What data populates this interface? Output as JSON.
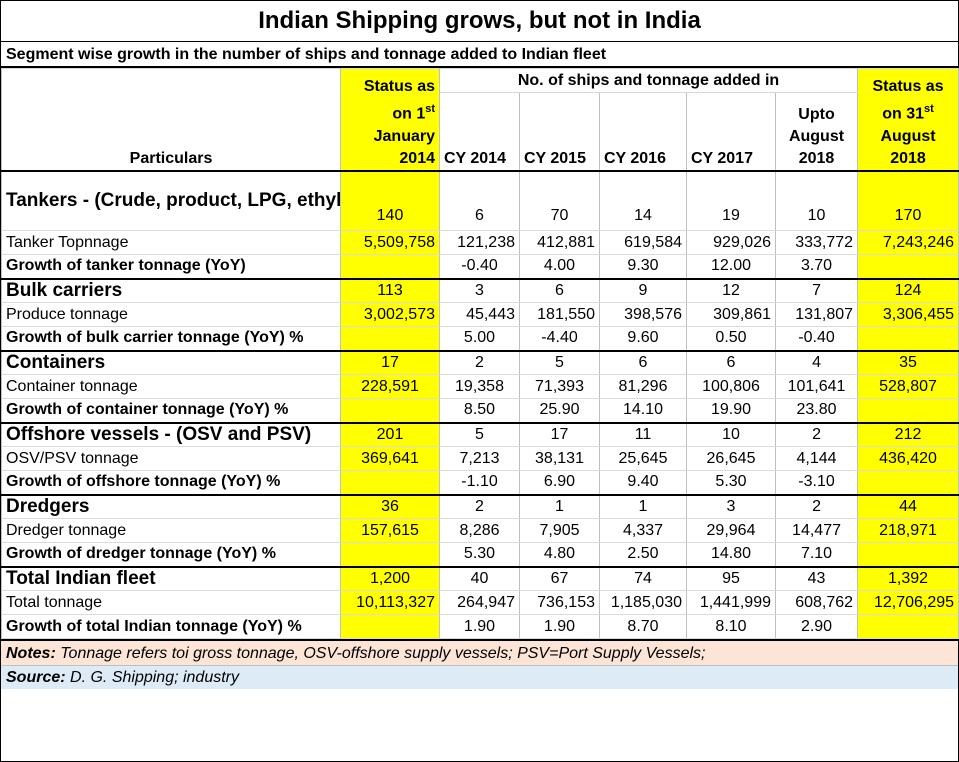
{
  "title": "Indian Shipping grows, but not in India",
  "subtitle": "Segment wise growth in the number of ships and tonnage added to Indian fleet",
  "header": {
    "particulars": "Particulars",
    "status_start_line1": "Status as",
    "status_start_line2_pre": "on 1",
    "status_start_line2_sup": "st",
    "status_start_line3": "January",
    "status_start_line4": "2014",
    "added_span": "No. of ships and tonnage added in",
    "years": [
      "CY 2014",
      "CY 2015",
      "CY 2016",
      "CY 2017"
    ],
    "upto_line1": "Upto",
    "upto_line2": "August",
    "upto_line3": "2018",
    "status_end_line1": "Status as",
    "status_end_line2_pre": "on 31",
    "status_end_line2_sup": "st",
    "status_end_line3": "August",
    "status_end_line4": "2018"
  },
  "segments": [
    {
      "title": "Tankers -  (Crude, product, LPG, ethylene, chemical and acid)",
      "ships": [
        "140",
        "6",
        "70",
        "14",
        "19",
        "10",
        "170"
      ],
      "tonnage_label": "Tanker Topnnage",
      "tonnage": [
        "5,509,758",
        "121,238",
        "412,881",
        "619,584",
        "929,026",
        "333,772",
        "7,243,246"
      ],
      "growth_label": "Growth of tanker tonnage (YoY)",
      "growth": [
        "",
        "-0.40",
        "4.00",
        "9.30",
        "12.00",
        "3.70",
        ""
      ]
    },
    {
      "title": "Bulk carriers",
      "ships": [
        "113",
        "3",
        "6",
        "9",
        "12",
        "7",
        "124"
      ],
      "tonnage_label": "Produce tonnage",
      "tonnage": [
        "3,002,573",
        "45,443",
        "181,550",
        "398,576",
        "309,861",
        "131,807",
        "3,306,455"
      ],
      "growth_label": "Growth of bulk carrier tonnage (YoY) %",
      "growth": [
        "",
        "5.00",
        "-4.40",
        "9.60",
        "0.50",
        "-0.40",
        ""
      ]
    },
    {
      "title": "Containers",
      "ships": [
        "17",
        "2",
        "5",
        "6",
        "6",
        "4",
        "35"
      ],
      "tonnage_label": "Container tonnage",
      "tonnage": [
        "228,591",
        "19,358",
        "71,393",
        "81,296",
        "100,806",
        "101,641",
        "528,807"
      ],
      "growth_label": "Growth of container tonnage (YoY) %",
      "growth": [
        "",
        "8.50",
        "25.90",
        "14.10",
        "19.90",
        "23.80",
        ""
      ]
    },
    {
      "title": "Offshore vessels - (OSV and PSV)",
      "ships": [
        "201",
        "5",
        "17",
        "11",
        "10",
        "2",
        "212"
      ],
      "tonnage_label": "OSV/PSV tonnage",
      "tonnage": [
        "369,641",
        "7,213",
        "38,131",
        "25,645",
        "26,645",
        "4,144",
        "436,420"
      ],
      "growth_label": "Growth of offshore tonnage (YoY) %",
      "growth": [
        "",
        "-1.10",
        "6.90",
        "9.40",
        "5.30",
        "-3.10",
        ""
      ]
    },
    {
      "title": "Dredgers",
      "ships": [
        "36",
        "2",
        "1",
        "1",
        "3",
        "2",
        "44"
      ],
      "tonnage_label": "Dredger tonnage",
      "tonnage": [
        "157,615",
        "8,286",
        "7,905",
        "4,337",
        "29,964",
        "14,477",
        "218,971"
      ],
      "growth_label": "Growth of dredger tonnage (YoY) %",
      "growth": [
        "",
        "5.30",
        "4.80",
        "2.50",
        "14.80",
        "7.10",
        ""
      ]
    },
    {
      "title": "Total Indian fleet",
      "ships": [
        "1,200",
        "40",
        "67",
        "74",
        "95",
        "43",
        "1,392"
      ],
      "tonnage_label": "Total tonnage",
      "tonnage": [
        "10,113,327",
        "264,947",
        "736,153",
        "1,185,030",
        "1,441,999",
        "608,762",
        "12,706,295"
      ],
      "growth_label": "Growth of total Indian tonnage (YoY) %",
      "growth": [
        "",
        "1.90",
        "1.90",
        "8.70",
        "8.10",
        "2.90",
        ""
      ]
    }
  ],
  "notes": {
    "label": "Notes:",
    "text": "Tonnage refers toi gross tonnage, OSV-offshore supply vessels; PSV=Port Supply Vessels;"
  },
  "source": {
    "label": "Source:",
    "text": "D. G. Shipping; industry"
  },
  "colors": {
    "highlight": "#ffff00",
    "notes_bg": "#fce4d6",
    "source_bg": "#ddebf7"
  }
}
